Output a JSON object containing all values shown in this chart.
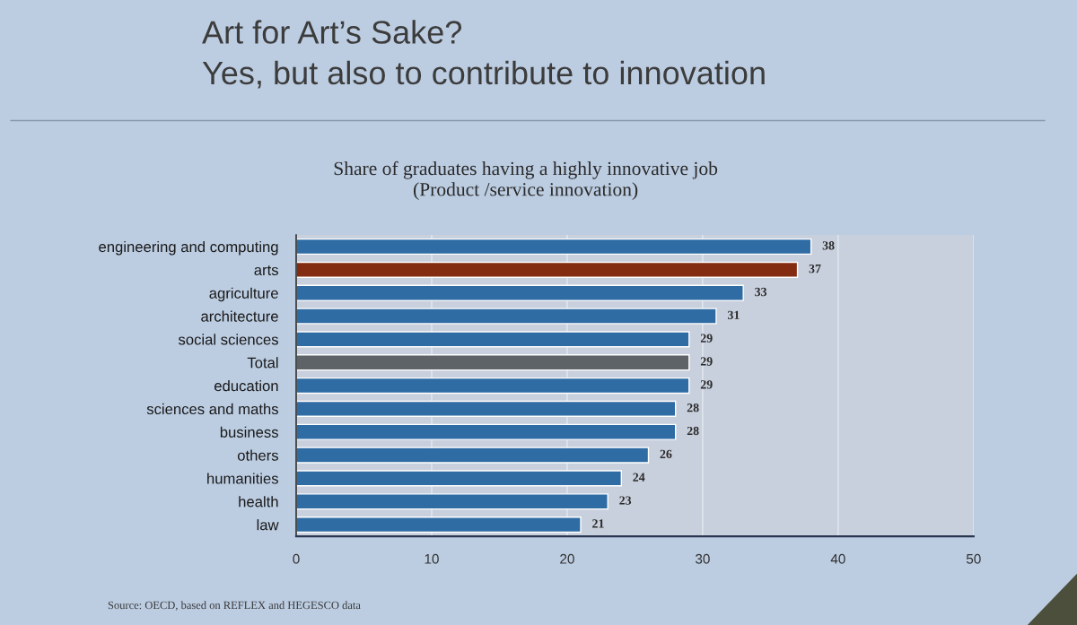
{
  "chart_data": {
    "type": "bar",
    "orientation": "horizontal",
    "title": "Art for Art’s Sake?\nYes, but also to contribute to innovation",
    "subtitle": "Share of graduates having a highly innovative job\n(Product /service innovation)",
    "categories": [
      "engineering and computing",
      "arts",
      "agriculture",
      "architecture",
      "social sciences",
      "Total",
      "education",
      "sciences and maths",
      "business",
      "others",
      "humanities",
      "health",
      "law"
    ],
    "values": [
      38,
      37,
      33,
      31,
      29,
      29,
      29,
      28,
      28,
      26,
      24,
      23,
      21
    ],
    "colors": [
      "#2f6ca4",
      "#842c12",
      "#2f6ca4",
      "#2f6ca4",
      "#2f6ca4",
      "#5d6367",
      "#2f6ca4",
      "#2f6ca4",
      "#2f6ca4",
      "#2f6ca4",
      "#2f6ca4",
      "#2f6ca4",
      "#2f6ca4"
    ],
    "xlim": [
      0,
      50
    ],
    "xticks": [
      0,
      10,
      20,
      30,
      40,
      50
    ],
    "grid": "x",
    "data_labels": true,
    "annotations": [
      "Source: OECD, based on REFLEX and HEGESCO data"
    ]
  }
}
